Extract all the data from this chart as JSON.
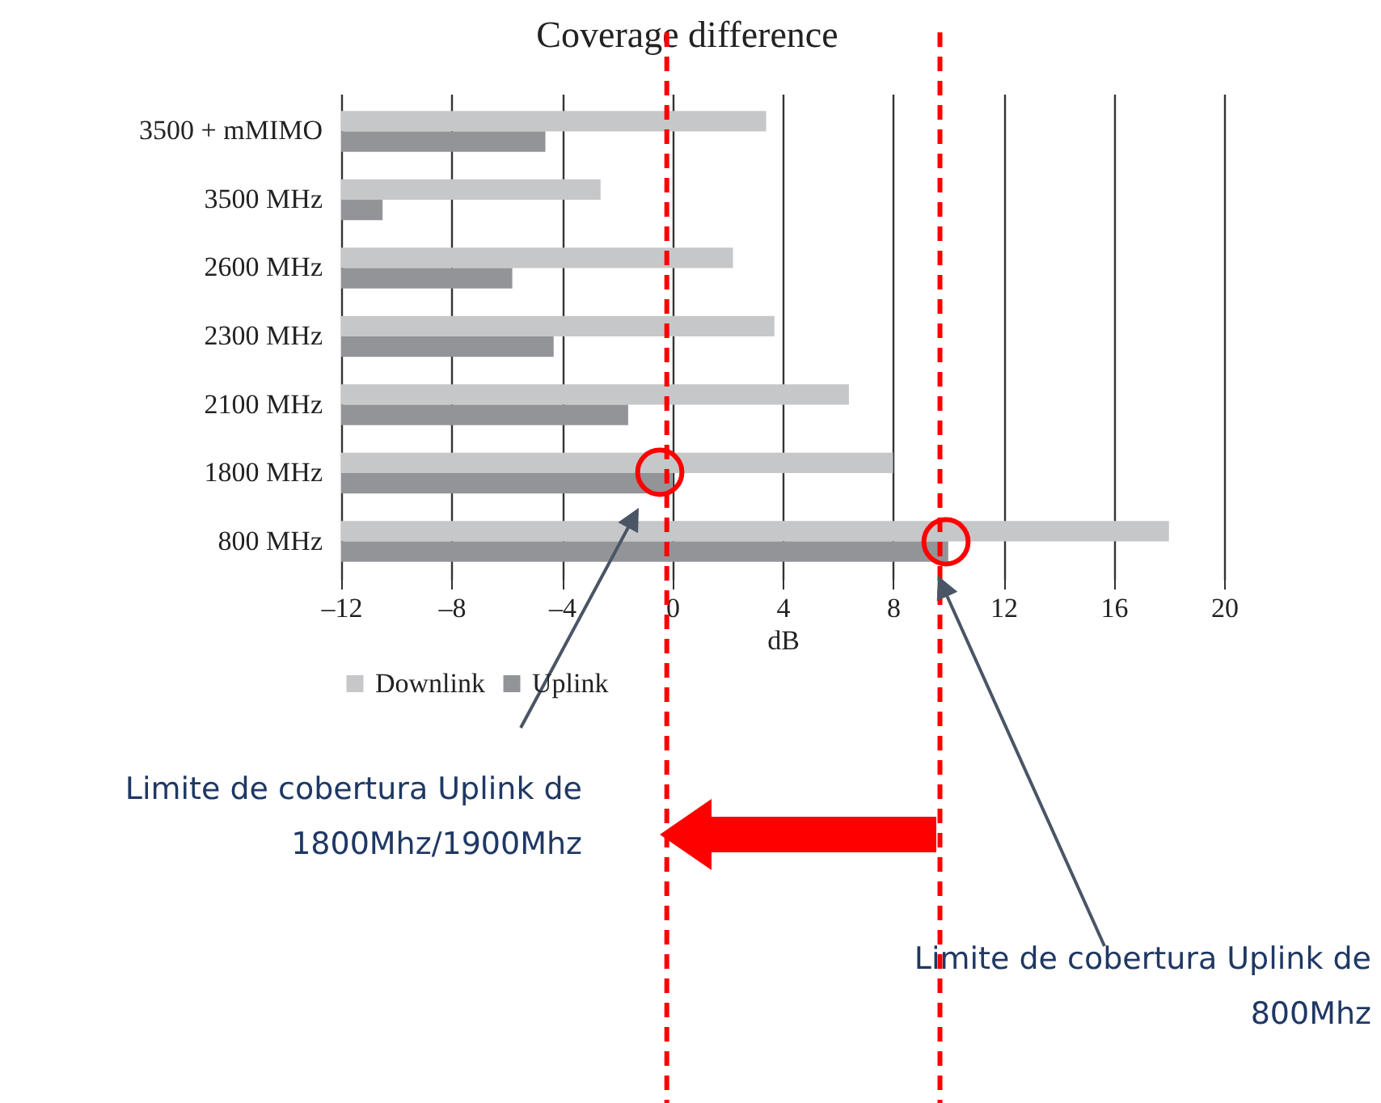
{
  "chart_data": {
    "type": "bar",
    "orientation": "horizontal",
    "title": "Coverage difference",
    "xlabel": "dB",
    "categories": [
      "3500 + mMIMO",
      "3500 MHz",
      "2600 MHz",
      "2300 MHz",
      "2100 MHz",
      "1800 MHz",
      "800 MHz"
    ],
    "series": [
      {
        "name": "Downlink",
        "color": "#c6c7c9",
        "base": [
          -12,
          -12,
          -12,
          -12,
          -12,
          -12,
          -12
        ],
        "values": [
          15.4,
          9.4,
          14.2,
          15.7,
          18.4,
          20.0,
          30.0
        ]
      },
      {
        "name": "Uplink",
        "color": "#939498",
        "base": [
          -12,
          -12,
          -12,
          -12,
          -12,
          -12,
          -12
        ],
        "values": [
          7.4,
          1.5,
          6.2,
          7.7,
          10.4,
          12.0,
          22.0
        ]
      }
    ],
    "xlim": [
      -12,
      20
    ],
    "xticks": [
      {
        "value": -12,
        "label": "–12"
      },
      {
        "value": -8,
        "label": "–8"
      },
      {
        "value": -4,
        "label": "–4"
      },
      0,
      4,
      8,
      12,
      16,
      20
    ],
    "grid": "x",
    "legend": "bottom",
    "ref_lines": [
      {
        "axis": "x",
        "value": -0.2,
        "color": "#ff0000",
        "line_style": "dashed"
      },
      {
        "axis": "x",
        "value": 9.7,
        "color": "#ff0000",
        "line_style": "dashed"
      }
    ],
    "annotations": [
      "Limite de cobertura Uplink de\n1800Mhz/1900Mhz",
      "Limite de cobertura Uplink de\n800Mhz"
    ]
  }
}
